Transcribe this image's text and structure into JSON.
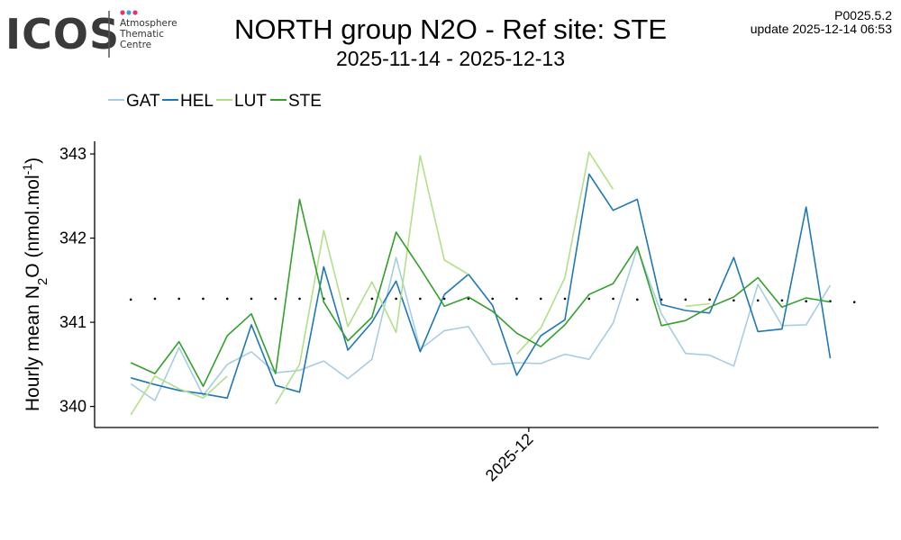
{
  "logo": {
    "letters": "ICOS",
    "line1": "Atmosphere",
    "line2": "Thematic",
    "line3": "Centre",
    "dot_colors": [
      "#e8336f",
      "#3aa3e3",
      "#e8336f"
    ]
  },
  "header": {
    "version": "P0025.5.2",
    "update_label": "update",
    "update_time": "2025-12-14 06:53"
  },
  "chart_data": {
    "type": "line",
    "title": "NORTH group N2O - Ref site: STE",
    "subtitle": "2025-11-14 - 2025-12-13",
    "ylabel": "Hourly mean N2O (nmol.mol-1)",
    "ylabel_parts": {
      "pre": "Hourly mean  N",
      "sub": "2",
      "mid": "O (nmol.mol",
      "sup": "-1",
      "post": ")"
    },
    "xlabel": "",
    "x_start": 0,
    "x_end": 30,
    "xlim": [
      -1.5,
      31
    ],
    "ylim": [
      339.75,
      343.15
    ],
    "yticks": [
      340,
      341,
      342,
      343
    ],
    "xticks": [
      {
        "x": 16.5,
        "label": "2025-12"
      }
    ],
    "legend_position": "top-left",
    "reference_line": {
      "style": "dotted",
      "values": [
        341.27,
        341.28,
        341.28,
        341.28,
        341.28,
        341.28,
        341.28,
        341.28,
        341.28,
        341.28,
        341.28,
        341.28,
        341.28,
        341.28,
        341.28,
        341.28,
        341.28,
        341.28,
        341.28,
        341.28,
        341.28,
        341.27,
        341.27,
        341.27,
        341.27,
        341.26,
        341.26,
        341.26,
        341.25,
        341.25,
        341.24
      ]
    },
    "series": [
      {
        "name": "GAT",
        "color": "#a6cee3",
        "values": [
          340.27,
          340.07,
          340.7,
          340.13,
          340.5,
          340.65,
          340.4,
          340.43,
          340.54,
          340.33,
          340.56,
          341.77,
          340.68,
          340.9,
          340.95,
          340.5,
          340.52,
          340.51,
          340.62,
          340.56,
          340.99,
          341.88,
          341.1,
          340.63,
          340.61,
          340.48,
          341.45,
          340.96,
          340.97,
          341.44,
          null
        ]
      },
      {
        "name": "HEL",
        "color": "#1f78b4",
        "values": [
          340.34,
          340.26,
          340.19,
          340.15,
          340.1,
          340.97,
          340.25,
          340.17,
          341.66,
          340.67,
          341.0,
          341.49,
          340.65,
          341.33,
          341.57,
          341.2,
          340.37,
          340.84,
          341.03,
          342.76,
          342.33,
          342.46,
          341.21,
          341.14,
          341.11,
          341.77,
          340.89,
          340.92,
          342.37,
          340.57,
          null
        ]
      },
      {
        "name": "LUT",
        "color": "#b2df8a",
        "values": [
          339.9,
          340.36,
          340.21,
          340.1,
          340.36,
          null,
          340.03,
          340.5,
          342.09,
          340.95,
          341.48,
          340.88,
          342.98,
          341.74,
          341.57,
          null,
          340.62,
          340.93,
          341.53,
          343.02,
          342.58,
          null,
          null,
          341.19,
          341.22,
          null,
          null,
          null,
          null,
          null,
          null
        ]
      },
      {
        "name": "STE",
        "color": "#33a02c",
        "values": [
          340.52,
          340.39,
          340.77,
          340.24,
          340.84,
          341.1,
          340.39,
          342.46,
          341.24,
          340.78,
          341.06,
          342.07,
          341.64,
          341.19,
          341.3,
          341.13,
          340.87,
          340.71,
          340.97,
          341.33,
          341.46,
          341.9,
          340.96,
          341.02,
          341.18,
          341.3,
          341.53,
          341.18,
          341.29,
          341.24,
          null
        ]
      }
    ]
  }
}
